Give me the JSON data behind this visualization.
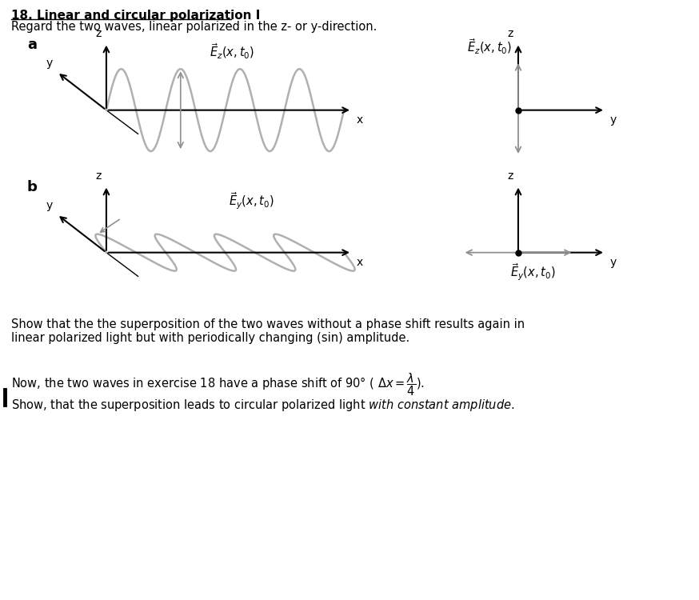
{
  "title": "18. Linear and circular polarization I",
  "subtitle": "Regard the two waves, linear polarized in the z- or y-direction.",
  "wave_color": "#b0b0b0",
  "arrow_color_gray": "#909090",
  "axis_color": "#000000",
  "background_color": "#ffffff",
  "bottom_text1": "Show that the the superposition of the two waves without a phase shift results again in",
  "bottom_text2": "linear polarized light but with periodically changing (sin) amplitude.",
  "bottom_text3": "Now, the two waves in exercise 18 have a phase shift of 90° ( Δx = λ/4).",
  "bottom_text4": "Show, that the superposition leads to circular polarized light with constant amplitude."
}
